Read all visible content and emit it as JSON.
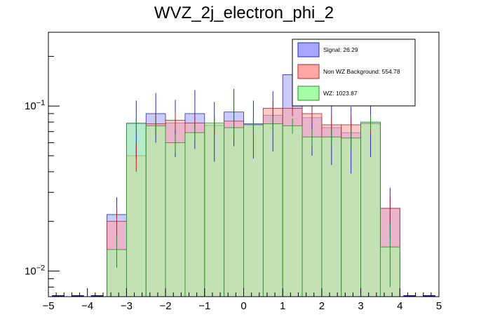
{
  "chart_data": {
    "type": "histogram",
    "title": "WVZ_2j_electron_phi_2",
    "xlabel": "",
    "ylabel": "",
    "xlim": [
      -5,
      5
    ],
    "ylim": [
      0.007,
      0.28
    ],
    "yscale": "log",
    "bin_edges": [
      -5,
      -4.5,
      -4,
      -3.5,
      -3,
      -2.5,
      -2,
      -1.5,
      -1,
      -0.5,
      0,
      0.5,
      1,
      1.5,
      2,
      2.5,
      3,
      3.5,
      4,
      4.5,
      5
    ],
    "x_ticks": [
      "−5",
      "−4",
      "−3",
      "−2",
      "−1",
      "0",
      "1",
      "2",
      "3",
      "4",
      "5"
    ],
    "y_ticks": [
      {
        "value": 0.1,
        "base": "10",
        "exp": "−1"
      },
      {
        "value": 0.01,
        "base": "10",
        "exp": "−2"
      }
    ],
    "series": [
      {
        "name": "Signal",
        "legend": "Signal: 26.29",
        "fill": "#a6a6ff",
        "line": "#2a2aa6",
        "values": [
          0,
          0,
          0,
          0.022,
          0.078,
          0.09,
          0.079,
          0.09,
          0.076,
          0.092,
          0.078,
          0.088,
          0.155,
          0.085,
          0.074,
          0.069,
          0.079,
          0.024,
          0,
          0
        ],
        "errors": [
          0,
          0,
          0,
          0.006,
          0.03,
          0.03,
          0.03,
          0.035,
          0.03,
          0.035,
          0.03,
          0.035,
          0.05,
          0.035,
          0.03,
          0.03,
          0.03,
          0.008,
          0,
          0
        ]
      },
      {
        "name": "Non WZ Background",
        "legend": "Non WZ Background: 554.78",
        "fill": "#ffa6a6",
        "line": "#a62a2a",
        "values": [
          0,
          0,
          0,
          0.02,
          0.05,
          0.078,
          0.082,
          0.079,
          0.077,
          0.081,
          0.077,
          0.097,
          0.097,
          0.09,
          0.077,
          0.077,
          0.078,
          0.024,
          0,
          0
        ],
        "errors": [
          0,
          0,
          0,
          0.005,
          0.01,
          0.01,
          0.01,
          0.01,
          0.01,
          0.01,
          0.01,
          0.01,
          0.01,
          0.01,
          0.01,
          0.01,
          0.01,
          0.005,
          0,
          0
        ]
      },
      {
        "name": "WZ",
        "legend": "WZ: 1023.87",
        "fill": "#a6ffa6",
        "line": "#2a8a2a",
        "values": [
          0,
          0,
          0,
          0.0135,
          0.079,
          0.076,
          0.06,
          0.069,
          0.079,
          0.074,
          0.077,
          0.078,
          0.076,
          0.065,
          0.065,
          0.064,
          0.08,
          0.014,
          0,
          0
        ],
        "errors": [
          0,
          0,
          0,
          0.003,
          0.008,
          0.007,
          0.008,
          0.008,
          0.008,
          0.008,
          0.008,
          0.008,
          0.008,
          0.008,
          0.008,
          0.008,
          0.008,
          0.006,
          0,
          0
        ]
      }
    ],
    "legend_position": "top-right"
  }
}
